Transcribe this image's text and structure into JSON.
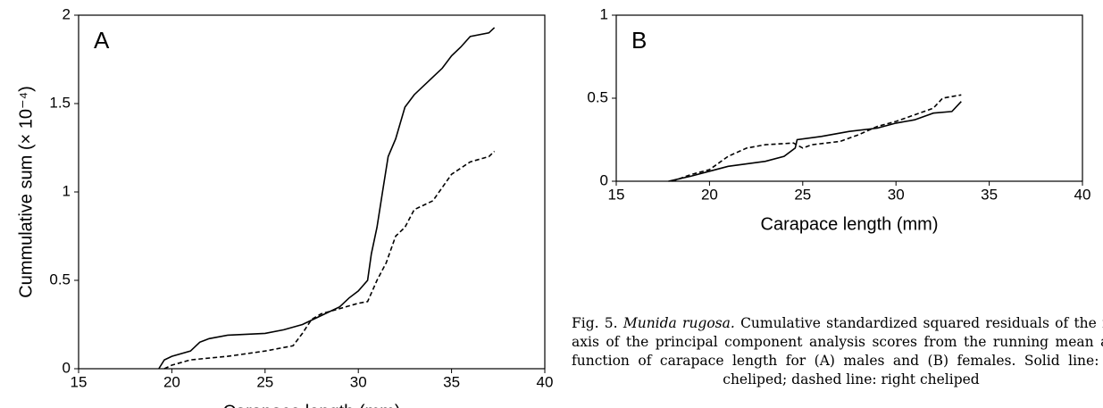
{
  "chart_data": [
    {
      "type": "line",
      "annotation": "A",
      "x_label": "Carapace length (mm)",
      "y_label": "Cummulative sum (× 10⁻⁴)",
      "xlim": [
        15,
        40
      ],
      "ylim": [
        0,
        2
      ],
      "xticks": [
        15,
        20,
        25,
        30,
        35,
        40
      ],
      "yticks": [
        0,
        0.5,
        1,
        1.5,
        2
      ],
      "series": [
        {
          "color": "#000000",
          "dash": "solid",
          "x": [
            19.3,
            19.6,
            20,
            21,
            21.5,
            22,
            23,
            25,
            26,
            27,
            28,
            29,
            29.5,
            30,
            30.5,
            30.7,
            31,
            31.3,
            31.6,
            32,
            32.5,
            33,
            34,
            34.5,
            35,
            35.5,
            36,
            37,
            37.3
          ],
          "values": [
            0,
            0.05,
            0.07,
            0.1,
            0.15,
            0.17,
            0.19,
            0.2,
            0.22,
            0.25,
            0.3,
            0.35,
            0.4,
            0.44,
            0.5,
            0.65,
            0.8,
            1.0,
            1.2,
            1.3,
            1.48,
            1.55,
            1.65,
            1.7,
            1.77,
            1.82,
            1.88,
            1.9,
            1.93
          ]
        },
        {
          "color": "#000000",
          "dash": "dashed",
          "x": [
            19.6,
            20,
            21,
            23,
            25,
            26.5,
            27,
            27.5,
            28,
            29,
            30,
            30.5,
            31,
            31.5,
            32,
            32.5,
            33,
            34,
            35,
            36,
            37,
            37.3
          ],
          "values": [
            0,
            0.02,
            0.05,
            0.07,
            0.1,
            0.13,
            0.2,
            0.28,
            0.31,
            0.34,
            0.37,
            0.38,
            0.5,
            0.6,
            0.75,
            0.8,
            0.9,
            0.95,
            1.1,
            1.17,
            1.2,
            1.23
          ]
        }
      ]
    },
    {
      "type": "line",
      "annotation": "B",
      "x_label": "Carapace length (mm)",
      "xlim": [
        15,
        40
      ],
      "ylim": [
        0,
        1
      ],
      "xticks": [
        15,
        20,
        25,
        30,
        35,
        40
      ],
      "yticks": [
        0,
        0.5,
        1
      ],
      "series": [
        {
          "color": "#000000",
          "dash": "solid",
          "x": [
            17.8,
            19,
            20,
            21,
            23,
            24,
            24.6,
            24.7,
            26,
            27.5,
            29,
            30,
            31,
            32,
            33,
            33.5
          ],
          "values": [
            0,
            0.03,
            0.06,
            0.09,
            0.12,
            0.15,
            0.2,
            0.25,
            0.27,
            0.3,
            0.32,
            0.35,
            0.37,
            0.41,
            0.42,
            0.48
          ]
        },
        {
          "color": "#000000",
          "dash": "dashed",
          "x": [
            18,
            19,
            20,
            21,
            22,
            23,
            24.5,
            25,
            25.5,
            27,
            28,
            29,
            30,
            31,
            32,
            32.5,
            33.5
          ],
          "values": [
            0,
            0.04,
            0.07,
            0.15,
            0.2,
            0.22,
            0.23,
            0.2,
            0.22,
            0.24,
            0.28,
            0.33,
            0.36,
            0.4,
            0.44,
            0.5,
            0.52
          ]
        }
      ]
    }
  ],
  "caption": {
    "label": "Fig. 5.",
    "species": "Munida rugosa.",
    "text": "Cumulative standardized squared residuals of the first axis of the principal component analysis scores from the running mean as a function of carapace length for (A) males and (B) females. Solid line: left cheliped; dashed line: right cheliped"
  }
}
